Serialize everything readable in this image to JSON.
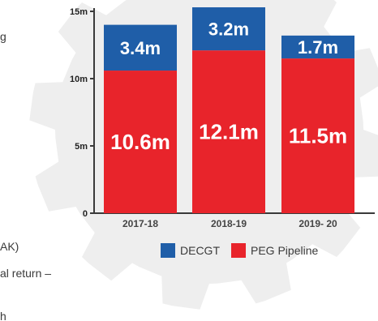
{
  "side_text": [
    "g",
    "AK)",
    "al return –",
    "h"
  ],
  "colors": {
    "decgt": "#1f5ea8",
    "peg": "#e8242b",
    "gear": "#eeeeee",
    "axis": "#3a3a3a"
  },
  "chart_data": {
    "type": "bar",
    "stacked": true,
    "categories": [
      "2017-18",
      "2018-19",
      "2019- 20"
    ],
    "series": [
      {
        "name": "PEG Pipeline",
        "values": [
          10.6,
          12.1,
          11.5
        ],
        "labels": [
          "10.6m",
          "12.1m",
          "11.5m"
        ],
        "color": "#e8242b"
      },
      {
        "name": "DECGT",
        "values": [
          3.4,
          3.2,
          1.7
        ],
        "labels": [
          "3.4m",
          "3.2m",
          "1.7m"
        ],
        "color": "#1f5ea8"
      }
    ],
    "y_ticks": [
      0,
      5,
      10,
      15
    ],
    "y_tick_labels": [
      "0",
      "5m",
      "10m",
      "15m"
    ],
    "ylim": [
      0,
      15
    ],
    "title": "",
    "xlabel": "",
    "ylabel": "",
    "legend": [
      "DECGT",
      "PEG Pipeline"
    ],
    "legend_position": "bottom",
    "grid": false
  }
}
